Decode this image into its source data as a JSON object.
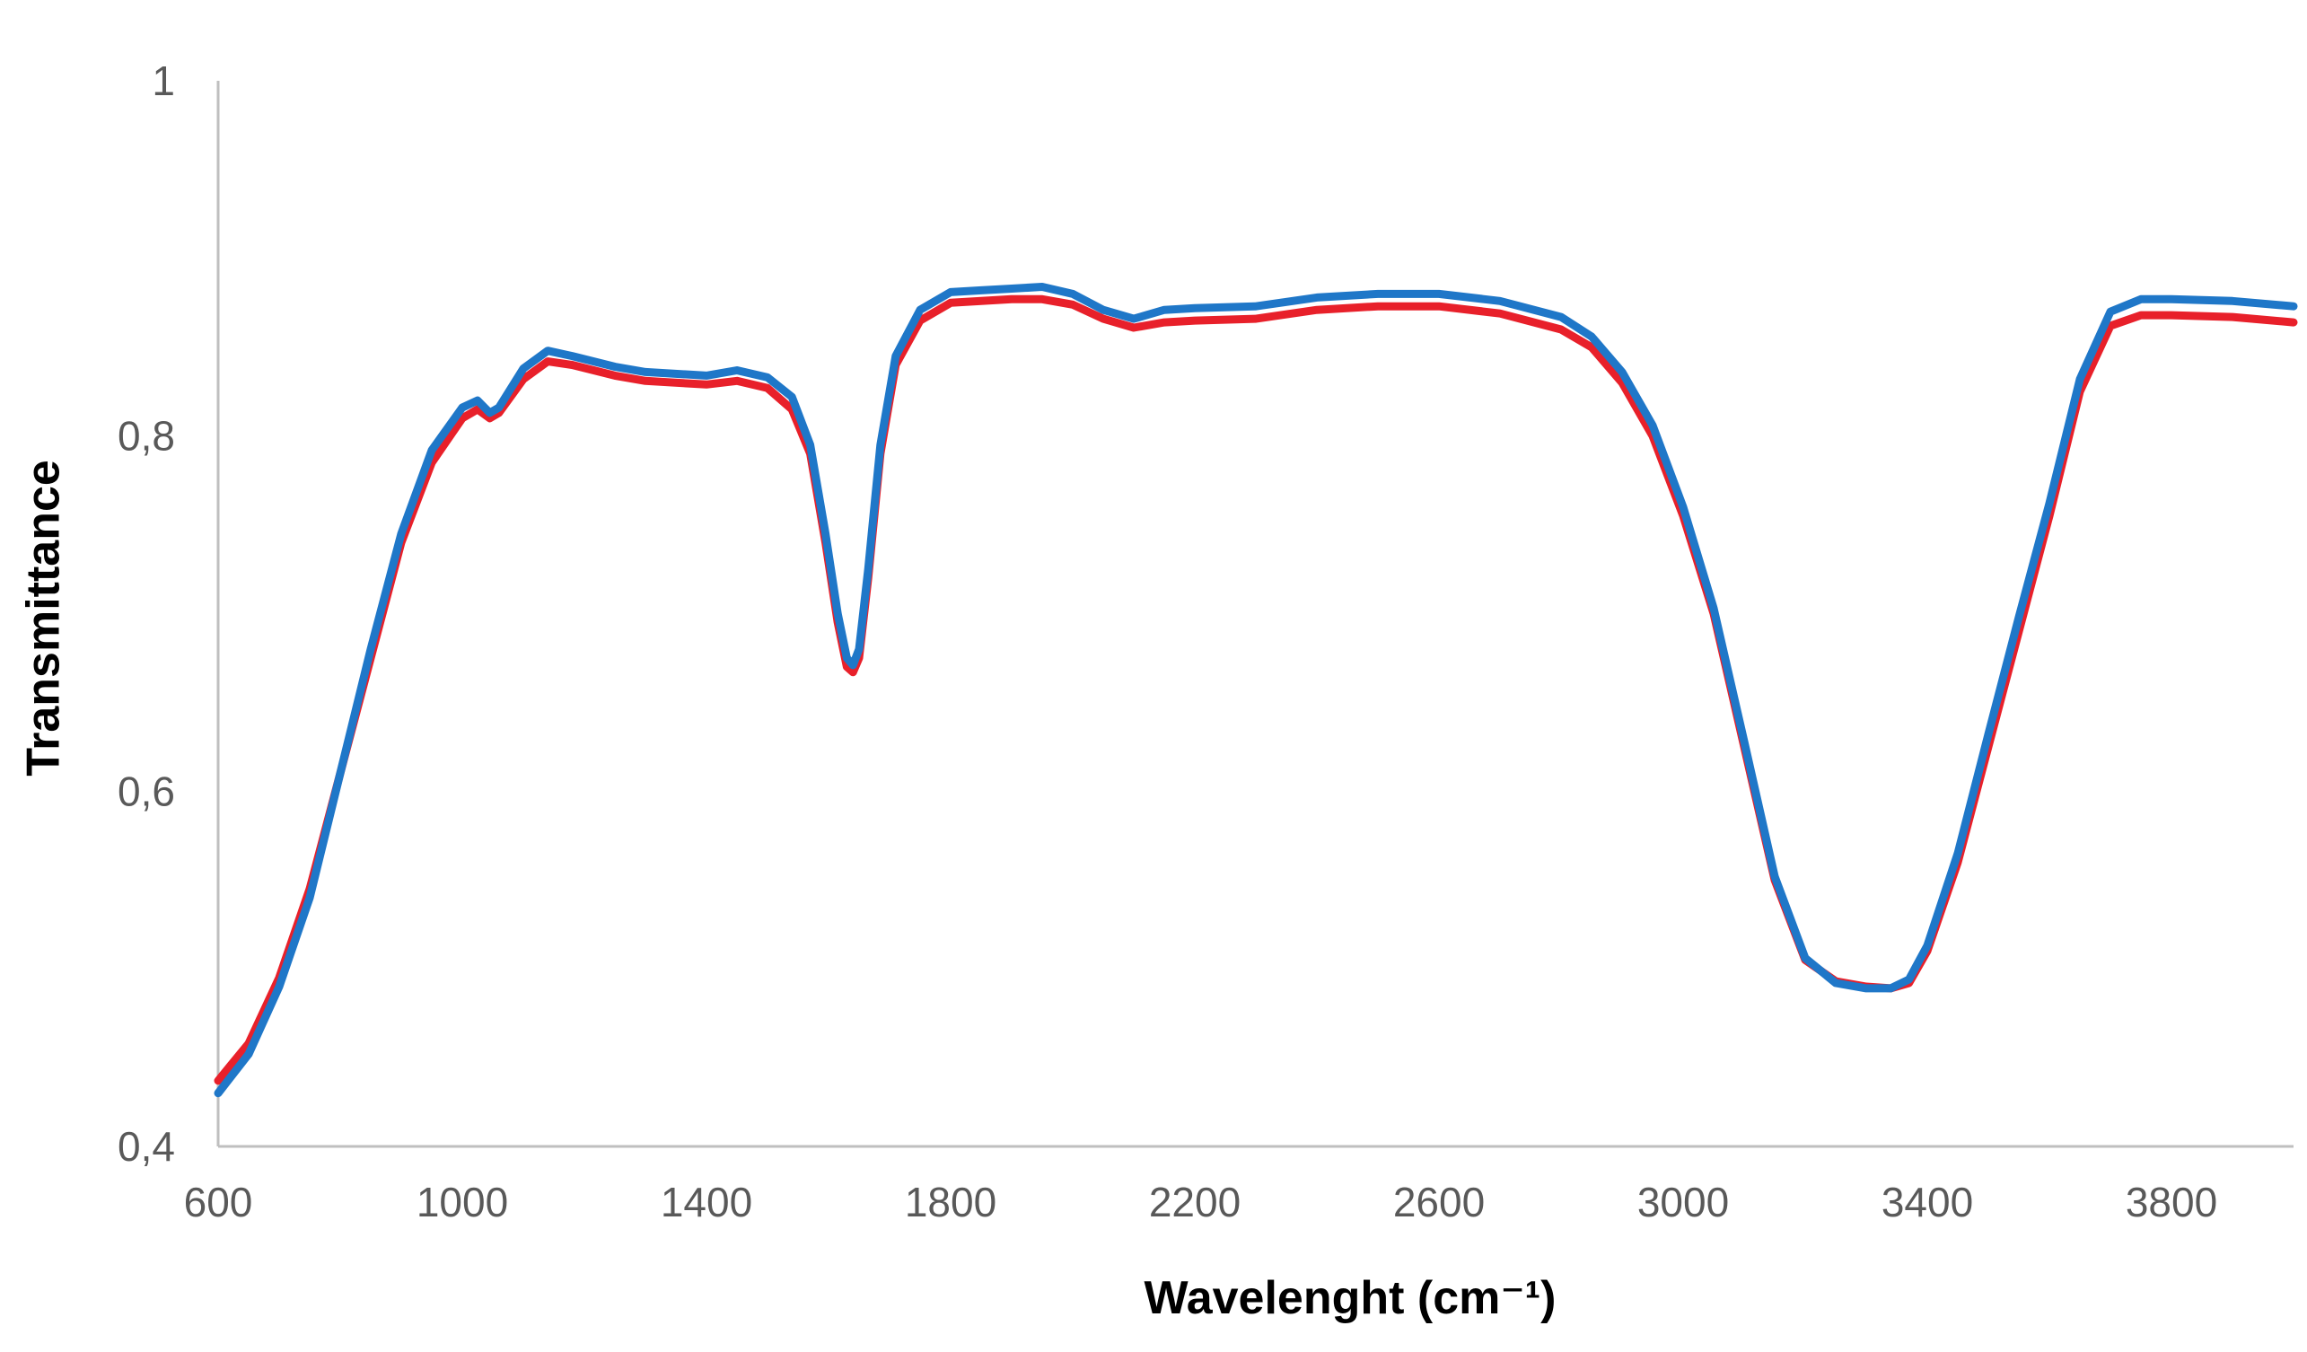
{
  "chart_data": {
    "type": "line",
    "title": "",
    "xlabel": "Wavelenght (cm⁻¹)",
    "ylabel": "Transmittance",
    "xlim": [
      600,
      4000
    ],
    "ylim": [
      0.4,
      1.0
    ],
    "xticks": [
      600,
      1000,
      1400,
      1800,
      2200,
      2600,
      3000,
      3400,
      3800
    ],
    "xtick_labels": [
      "600",
      "1000",
      "1400",
      "1800",
      "2200",
      "2600",
      "3000",
      "3400",
      "3800"
    ],
    "yticks": [
      0.4,
      0.6,
      0.8,
      1.0
    ],
    "ytick_labels": [
      "0,4",
      "0,6",
      "0,8",
      "1"
    ],
    "grid": false,
    "legend": "none",
    "series": [
      {
        "name": "series-red",
        "color": "#e8202a",
        "points": [
          [
            600,
            0.437
          ],
          [
            650,
            0.458
          ],
          [
            700,
            0.495
          ],
          [
            750,
            0.545
          ],
          [
            800,
            0.61
          ],
          [
            850,
            0.675
          ],
          [
            900,
            0.74
          ],
          [
            950,
            0.785
          ],
          [
            1000,
            0.81
          ],
          [
            1025,
            0.815
          ],
          [
            1045,
            0.81
          ],
          [
            1060,
            0.813
          ],
          [
            1100,
            0.832
          ],
          [
            1140,
            0.842
          ],
          [
            1180,
            0.84
          ],
          [
            1250,
            0.834
          ],
          [
            1300,
            0.831
          ],
          [
            1400,
            0.829
          ],
          [
            1450,
            0.831
          ],
          [
            1500,
            0.827
          ],
          [
            1540,
            0.815
          ],
          [
            1570,
            0.79
          ],
          [
            1595,
            0.74
          ],
          [
            1615,
            0.695
          ],
          [
            1630,
            0.67
          ],
          [
            1640,
            0.667
          ],
          [
            1650,
            0.675
          ],
          [
            1665,
            0.72
          ],
          [
            1685,
            0.79
          ],
          [
            1710,
            0.84
          ],
          [
            1750,
            0.865
          ],
          [
            1800,
            0.875
          ],
          [
            1850,
            0.876
          ],
          [
            1900,
            0.877
          ],
          [
            1950,
            0.877
          ],
          [
            2000,
            0.874
          ],
          [
            2050,
            0.866
          ],
          [
            2100,
            0.861
          ],
          [
            2150,
            0.864
          ],
          [
            2200,
            0.865
          ],
          [
            2300,
            0.866
          ],
          [
            2400,
            0.871
          ],
          [
            2500,
            0.873
          ],
          [
            2600,
            0.873
          ],
          [
            2700,
            0.869
          ],
          [
            2800,
            0.86
          ],
          [
            2850,
            0.85
          ],
          [
            2900,
            0.83
          ],
          [
            2950,
            0.8
          ],
          [
            3000,
            0.755
          ],
          [
            3050,
            0.7
          ],
          [
            3100,
            0.625
          ],
          [
            3150,
            0.55
          ],
          [
            3200,
            0.505
          ],
          [
            3250,
            0.493
          ],
          [
            3300,
            0.49
          ],
          [
            3340,
            0.489
          ],
          [
            3370,
            0.492
          ],
          [
            3400,
            0.51
          ],
          [
            3450,
            0.56
          ],
          [
            3500,
            0.625
          ],
          [
            3550,
            0.69
          ],
          [
            3600,
            0.755
          ],
          [
            3650,
            0.825
          ],
          [
            3700,
            0.862
          ],
          [
            3750,
            0.868
          ],
          [
            3800,
            0.868
          ],
          [
            3900,
            0.867
          ],
          [
            4000,
            0.864
          ]
        ]
      },
      {
        "name": "series-blue",
        "color": "#1f77c8",
        "points": [
          [
            600,
            0.43
          ],
          [
            650,
            0.452
          ],
          [
            700,
            0.49
          ],
          [
            750,
            0.54
          ],
          [
            800,
            0.61
          ],
          [
            850,
            0.68
          ],
          [
            900,
            0.745
          ],
          [
            950,
            0.792
          ],
          [
            1000,
            0.816
          ],
          [
            1025,
            0.82
          ],
          [
            1045,
            0.813
          ],
          [
            1060,
            0.816
          ],
          [
            1100,
            0.838
          ],
          [
            1140,
            0.848
          ],
          [
            1180,
            0.845
          ],
          [
            1250,
            0.839
          ],
          [
            1300,
            0.836
          ],
          [
            1400,
            0.834
          ],
          [
            1450,
            0.837
          ],
          [
            1500,
            0.833
          ],
          [
            1540,
            0.822
          ],
          [
            1570,
            0.795
          ],
          [
            1595,
            0.745
          ],
          [
            1615,
            0.7
          ],
          [
            1630,
            0.675
          ],
          [
            1640,
            0.671
          ],
          [
            1650,
            0.68
          ],
          [
            1665,
            0.725
          ],
          [
            1685,
            0.795
          ],
          [
            1710,
            0.845
          ],
          [
            1750,
            0.871
          ],
          [
            1800,
            0.881
          ],
          [
            1850,
            0.882
          ],
          [
            1900,
            0.883
          ],
          [
            1950,
            0.884
          ],
          [
            2000,
            0.88
          ],
          [
            2050,
            0.871
          ],
          [
            2100,
            0.866
          ],
          [
            2150,
            0.871
          ],
          [
            2200,
            0.872
          ],
          [
            2300,
            0.873
          ],
          [
            2400,
            0.878
          ],
          [
            2500,
            0.88
          ],
          [
            2600,
            0.88
          ],
          [
            2700,
            0.876
          ],
          [
            2800,
            0.867
          ],
          [
            2850,
            0.856
          ],
          [
            2900,
            0.836
          ],
          [
            2950,
            0.806
          ],
          [
            3000,
            0.76
          ],
          [
            3050,
            0.703
          ],
          [
            3100,
            0.628
          ],
          [
            3150,
            0.552
          ],
          [
            3200,
            0.506
          ],
          [
            3250,
            0.492
          ],
          [
            3300,
            0.489
          ],
          [
            3340,
            0.489
          ],
          [
            3370,
            0.494
          ],
          [
            3400,
            0.513
          ],
          [
            3450,
            0.565
          ],
          [
            3500,
            0.632
          ],
          [
            3550,
            0.698
          ],
          [
            3600,
            0.762
          ],
          [
            3650,
            0.832
          ],
          [
            3700,
            0.87
          ],
          [
            3750,
            0.877
          ],
          [
            3800,
            0.877
          ],
          [
            3900,
            0.876
          ],
          [
            4000,
            0.873
          ]
        ]
      }
    ]
  }
}
